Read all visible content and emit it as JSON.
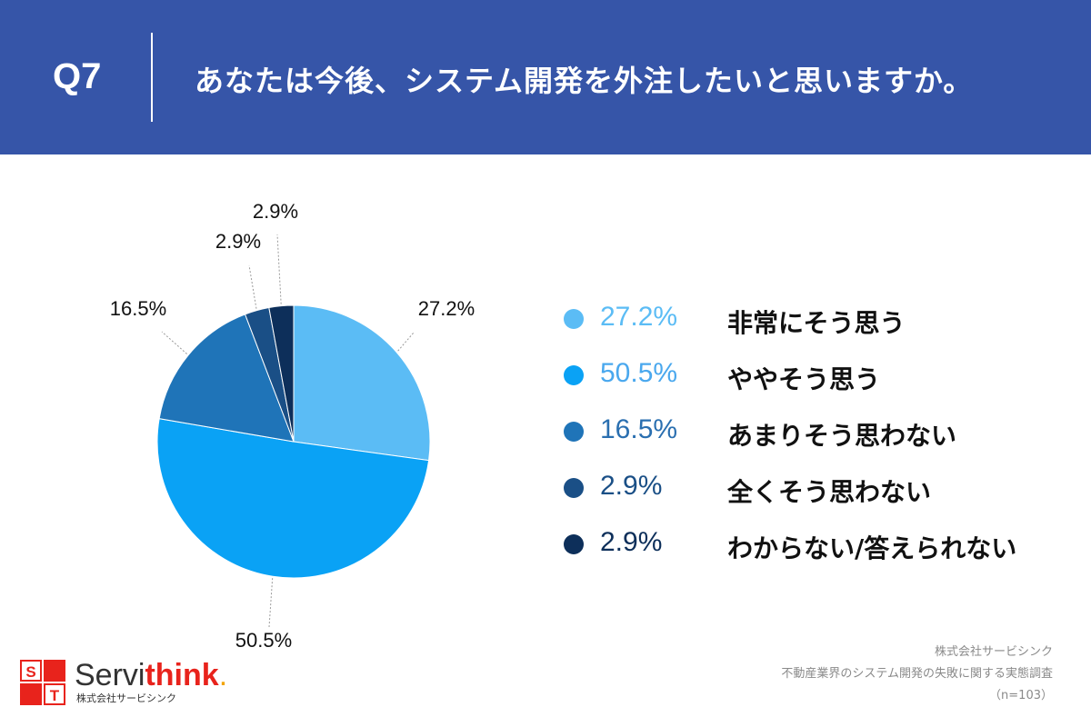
{
  "header": {
    "question_number": "Q7",
    "question_text": "あなたは今後、システム開発を外注したいと思いますか。"
  },
  "chart_data": {
    "type": "pie",
    "categories": [
      "非常にそう思う",
      "ややそう思う",
      "あまりそう思わない",
      "全くそう思わない",
      "わからない/答えられない"
    ],
    "values": [
      27.2,
      50.5,
      16.5,
      2.9,
      2.9
    ],
    "data_labels": [
      "27.2%",
      "50.5%",
      "16.5%",
      "2.9%",
      "2.9%"
    ],
    "colors": [
      "#5bbcf5",
      "#0aa2f5",
      "#1f74b8",
      "#1a4f86",
      "#0d2f5a"
    ],
    "legend_pct_colors": [
      "#5bbcf5",
      "#4aa8ee",
      "#2a6fb0",
      "#1a4f86",
      "#0d2f5a"
    ],
    "legend_placement": "right"
  },
  "legend": [
    {
      "pct": "27.2%",
      "label": "非常にそう思う"
    },
    {
      "pct": "50.5%",
      "label": "ややそう思う"
    },
    {
      "pct": "16.5%",
      "label": "あまりそう思わない"
    },
    {
      "pct": "2.9%",
      "label": "全くそう思わない"
    },
    {
      "pct": "2.9%",
      "label": "わからない/答えられない"
    }
  ],
  "source": {
    "company": "株式会社サービシンク",
    "survey": "不動産業界のシステム開発の失敗に関する実態調査",
    "sample": "（n=103）"
  },
  "logo": {
    "cells": [
      "S",
      "T"
    ],
    "name_part1": "Servi",
    "name_part2": "think",
    "name_dot": ".",
    "company_sub": "株式会社サービシンク"
  }
}
